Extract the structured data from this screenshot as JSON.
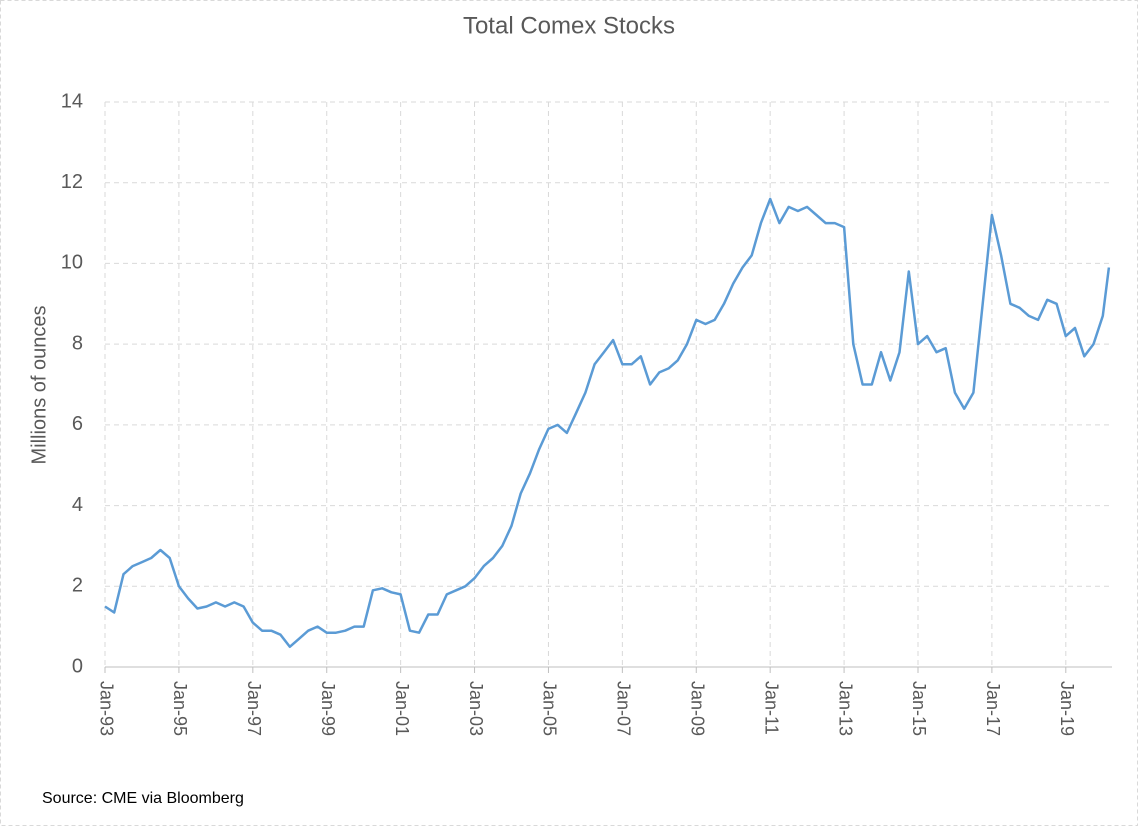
{
  "chart_data": {
    "type": "line",
    "title": "Total Comex Stocks",
    "ylabel": "Millions of ounces",
    "source": "Source: CME via Bloomberg",
    "x": [
      "1993-01",
      "1993-04",
      "1993-07",
      "1993-10",
      "1994-01",
      "1994-04",
      "1994-07",
      "1994-10",
      "1995-01",
      "1995-04",
      "1995-07",
      "1995-10",
      "1996-01",
      "1996-04",
      "1996-07",
      "1996-10",
      "1997-01",
      "1997-04",
      "1997-07",
      "1997-10",
      "1998-01",
      "1998-04",
      "1998-07",
      "1998-10",
      "1999-01",
      "1999-04",
      "1999-07",
      "1999-10",
      "2000-01",
      "2000-04",
      "2000-07",
      "2000-10",
      "2001-01",
      "2001-04",
      "2001-07",
      "2001-10",
      "2002-01",
      "2002-04",
      "2002-07",
      "2002-10",
      "2003-01",
      "2003-04",
      "2003-07",
      "2003-10",
      "2004-01",
      "2004-04",
      "2004-07",
      "2004-10",
      "2005-01",
      "2005-04",
      "2005-07",
      "2005-10",
      "2006-01",
      "2006-04",
      "2006-07",
      "2006-10",
      "2007-01",
      "2007-04",
      "2007-07",
      "2007-10",
      "2008-01",
      "2008-04",
      "2008-07",
      "2008-10",
      "2009-01",
      "2009-04",
      "2009-07",
      "2009-10",
      "2010-01",
      "2010-04",
      "2010-07",
      "2010-10",
      "2011-01",
      "2011-04",
      "2011-07",
      "2011-10",
      "2012-01",
      "2012-04",
      "2012-07",
      "2012-10",
      "2013-01",
      "2013-04",
      "2013-07",
      "2013-10",
      "2014-01",
      "2014-04",
      "2014-07",
      "2014-10",
      "2015-01",
      "2015-04",
      "2015-07",
      "2015-10",
      "2016-01",
      "2016-04",
      "2016-07",
      "2016-10",
      "2017-01",
      "2017-04",
      "2017-07",
      "2017-10",
      "2018-01",
      "2018-04",
      "2018-07",
      "2018-10",
      "2019-01",
      "2019-04",
      "2019-07",
      "2019-10",
      "2020-01",
      "2020-03"
    ],
    "series": [
      {
        "name": "Total Comex Stocks",
        "color": "#5b9bd5",
        "values": [
          1.5,
          1.35,
          2.3,
          2.5,
          2.6,
          2.7,
          2.9,
          2.7,
          2.0,
          1.7,
          1.45,
          1.5,
          1.6,
          1.5,
          1.6,
          1.5,
          1.1,
          0.9,
          0.9,
          0.8,
          0.5,
          0.7,
          0.9,
          1.0,
          0.85,
          0.85,
          0.9,
          1.0,
          1.0,
          1.9,
          1.95,
          1.85,
          1.8,
          0.9,
          0.85,
          1.3,
          1.3,
          1.8,
          1.9,
          2.0,
          2.2,
          2.5,
          2.7,
          3.0,
          3.5,
          4.3,
          4.8,
          5.4,
          5.9,
          6.0,
          5.8,
          6.3,
          6.8,
          7.5,
          7.8,
          8.1,
          7.5,
          7.5,
          7.7,
          7.0,
          7.3,
          7.4,
          7.6,
          8.0,
          8.6,
          8.5,
          8.6,
          9.0,
          9.5,
          9.9,
          10.2,
          11.0,
          11.6,
          11.0,
          11.4,
          11.3,
          11.4,
          11.2,
          11.0,
          11.0,
          10.9,
          8.0,
          7.0,
          7.0,
          7.8,
          7.1,
          7.8,
          9.8,
          8.0,
          8.2,
          7.8,
          7.9,
          6.8,
          6.4,
          6.8,
          9.0,
          11.2,
          10.2,
          9.0,
          8.9,
          8.7,
          8.6,
          9.1,
          9.0,
          8.2,
          8.4,
          7.7,
          8.0,
          8.7,
          9.9
        ]
      }
    ],
    "xlim": [
      "1993-01",
      "2020-04"
    ],
    "xticks": [
      {
        "value": "1993-01",
        "label": "Jan-93"
      },
      {
        "value": "1995-01",
        "label": "Jan-95"
      },
      {
        "value": "1997-01",
        "label": "Jan-97"
      },
      {
        "value": "1999-01",
        "label": "Jan-99"
      },
      {
        "value": "2001-01",
        "label": "Jan-01"
      },
      {
        "value": "2003-01",
        "label": "Jan-03"
      },
      {
        "value": "2005-01",
        "label": "Jan-05"
      },
      {
        "value": "2007-01",
        "label": "Jan-07"
      },
      {
        "value": "2009-01",
        "label": "Jan-09"
      },
      {
        "value": "2011-01",
        "label": "Jan-11"
      },
      {
        "value": "2013-01",
        "label": "Jan-13"
      },
      {
        "value": "2015-01",
        "label": "Jan-15"
      },
      {
        "value": "2017-01",
        "label": "Jan-17"
      },
      {
        "value": "2019-01",
        "label": "Jan-19"
      }
    ],
    "ylim": [
      0,
      14
    ],
    "yticks": [
      0,
      2,
      4,
      6,
      8,
      10,
      12,
      14
    ],
    "grid": true
  }
}
